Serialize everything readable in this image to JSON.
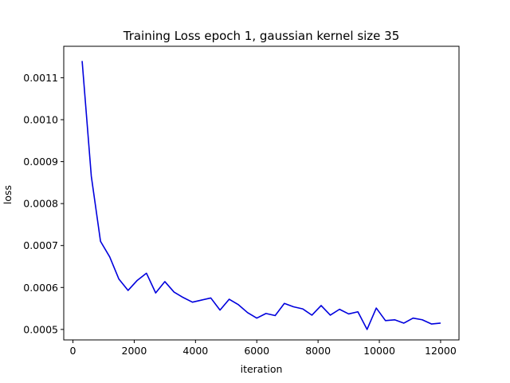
{
  "chart_data": {
    "type": "line",
    "title": "Training Loss epoch 1, gaussian kernel size 35",
    "xlabel": "iteration",
    "ylabel": "loss",
    "xlim": [
      -300,
      12600
    ],
    "ylim": [
      0.000475,
      0.001175
    ],
    "xticks": [
      0,
      2000,
      4000,
      6000,
      8000,
      10000,
      12000
    ],
    "xtick_labels": [
      "0",
      "2000",
      "4000",
      "6000",
      "8000",
      "10000",
      "12000"
    ],
    "yticks": [
      0.0005,
      0.0006,
      0.0007,
      0.0008,
      0.0009,
      0.001,
      0.0011
    ],
    "ytick_labels": [
      "0.0005",
      "0.0006",
      "0.0007",
      "0.0008",
      "0.0009",
      "0.0010",
      "0.0011"
    ],
    "grid": false,
    "series": [
      {
        "color": "#0000dd",
        "x": [
          300,
          600,
          900,
          1200,
          1500,
          1800,
          2100,
          2400,
          2700,
          3000,
          3300,
          3600,
          3900,
          4200,
          4500,
          4800,
          5100,
          5400,
          5700,
          6000,
          6300,
          6600,
          6900,
          7200,
          7500,
          7800,
          8100,
          8400,
          8700,
          9000,
          9300,
          9600,
          9900,
          10200,
          10500,
          10800,
          11100,
          11400,
          11700,
          12000
        ],
        "y": [
          0.00114,
          0.000865,
          0.00071,
          0.000673,
          0.00062,
          0.000593,
          0.000617,
          0.000634,
          0.000587,
          0.000614,
          0.000589,
          0.000576,
          0.000565,
          0.00057,
          0.000575,
          0.000546,
          0.000572,
          0.000559,
          0.00054,
          0.000527,
          0.000538,
          0.000533,
          0.000562,
          0.000554,
          0.000549,
          0.000534,
          0.000557,
          0.000534,
          0.000548,
          0.000537,
          0.000542,
          0.0005,
          0.000551,
          0.000521,
          0.000523,
          0.000515,
          0.000527,
          0.000523,
          0.000513,
          0.000515
        ]
      }
    ]
  }
}
